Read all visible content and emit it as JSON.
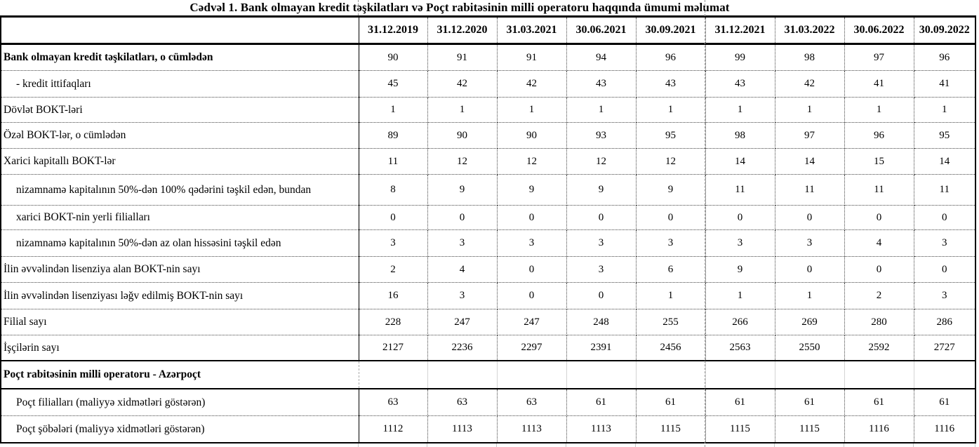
{
  "title": "Cədvəl 1. Bank olmayan kredit təşkilatları və Poçt rabitəsinin milli operatoru haqqında ümumi məlumat",
  "colors": {
    "text": "#000000",
    "table_border": "#000000",
    "page_break_line": "#9a9a9a",
    "grid_stub": "#c9c9c9",
    "background": "#ffffff"
  },
  "table": {
    "col_headers": [
      "31.12.2019",
      "31.12.2020",
      "31.03.2021",
      "30.06.2021",
      "30.09.2021",
      "31.12.2021",
      "31.03.2022",
      "30.06.2022",
      "30.09.2022"
    ],
    "rows": [
      {
        "label": "Bank olmayan kredit təşkilatları, o cümlədən",
        "bold": true,
        "indent": 0,
        "values": [
          90,
          91,
          91,
          94,
          96,
          99,
          98,
          97,
          96
        ]
      },
      {
        "label": "- kredit ittifaqları",
        "bold": false,
        "indent": 1,
        "values": [
          45,
          42,
          42,
          43,
          43,
          43,
          42,
          41,
          41
        ]
      },
      {
        "label": "Dövlət BOKT-ləri",
        "bold": false,
        "indent": 0,
        "values": [
          1,
          1,
          1,
          1,
          1,
          1,
          1,
          1,
          1
        ]
      },
      {
        "label": "Özəl BOKT-lər, o cümlədən",
        "bold": false,
        "indent": 0,
        "values": [
          89,
          90,
          90,
          93,
          95,
          98,
          97,
          96,
          95
        ]
      },
      {
        "label": "Xarici kapitallı BOKT-lər",
        "bold": false,
        "indent": 0,
        "values": [
          11,
          12,
          12,
          12,
          12,
          14,
          14,
          15,
          14
        ]
      },
      {
        "label": "nizamnamə kapitalının 50%-dən 100% qədərini təşkil edən, bundan",
        "bold": false,
        "indent": 1,
        "values": [
          8,
          9,
          9,
          9,
          9,
          11,
          11,
          11,
          11
        ]
      },
      {
        "label": "xarici BOKT-nin yerli filialları",
        "bold": false,
        "indent": 1,
        "values": [
          0,
          0,
          0,
          0,
          0,
          0,
          0,
          0,
          0
        ]
      },
      {
        "label": "nizamnamə kapitalının 50%-dən az olan hissəsini  təşkil edən",
        "bold": false,
        "indent": 1,
        "values": [
          3,
          3,
          3,
          3,
          3,
          3,
          3,
          4,
          3
        ]
      },
      {
        "label": "İlin əvvəlindən lisenziya alan BOKT-nin sayı",
        "bold": false,
        "indent": 0,
        "values": [
          2,
          4,
          0,
          3,
          6,
          9,
          0,
          0,
          0
        ]
      },
      {
        "label": "İlin əvvəlindən lisenziyası ləğv edilmiş BOKT-nin sayı",
        "bold": false,
        "indent": 0,
        "values": [
          16,
          3,
          0,
          0,
          1,
          1,
          1,
          2,
          3
        ]
      },
      {
        "label": "Filial sayı",
        "bold": false,
        "indent": 0,
        "values": [
          228,
          247,
          247,
          248,
          255,
          266,
          269,
          280,
          286
        ]
      },
      {
        "label": "İşçilərin sayı",
        "bold": false,
        "indent": 0,
        "values": [
          2127,
          2236,
          2297,
          2391,
          2456,
          2563,
          2550,
          2592,
          2727
        ]
      },
      {
        "label": "Poçt rabitəsinin milli operatoru - Azərpoçt",
        "bold": true,
        "section": true,
        "indent": 0,
        "values": [
          "",
          "",
          "",
          "",
          "",
          "",
          "",
          "",
          ""
        ]
      },
      {
        "label": "Poçt filialları (maliyyə xidmətləri göstərən)",
        "bold": false,
        "indent": 1,
        "values": [
          63,
          63,
          63,
          61,
          61,
          61,
          61,
          61,
          61
        ]
      },
      {
        "label": "Poçt şöbələri (maliyyə xidmətləri göstərən)",
        "bold": false,
        "indent": 1,
        "values": [
          1112,
          1113,
          1113,
          1113,
          1115,
          1115,
          1115,
          1116,
          1116
        ]
      }
    ]
  }
}
